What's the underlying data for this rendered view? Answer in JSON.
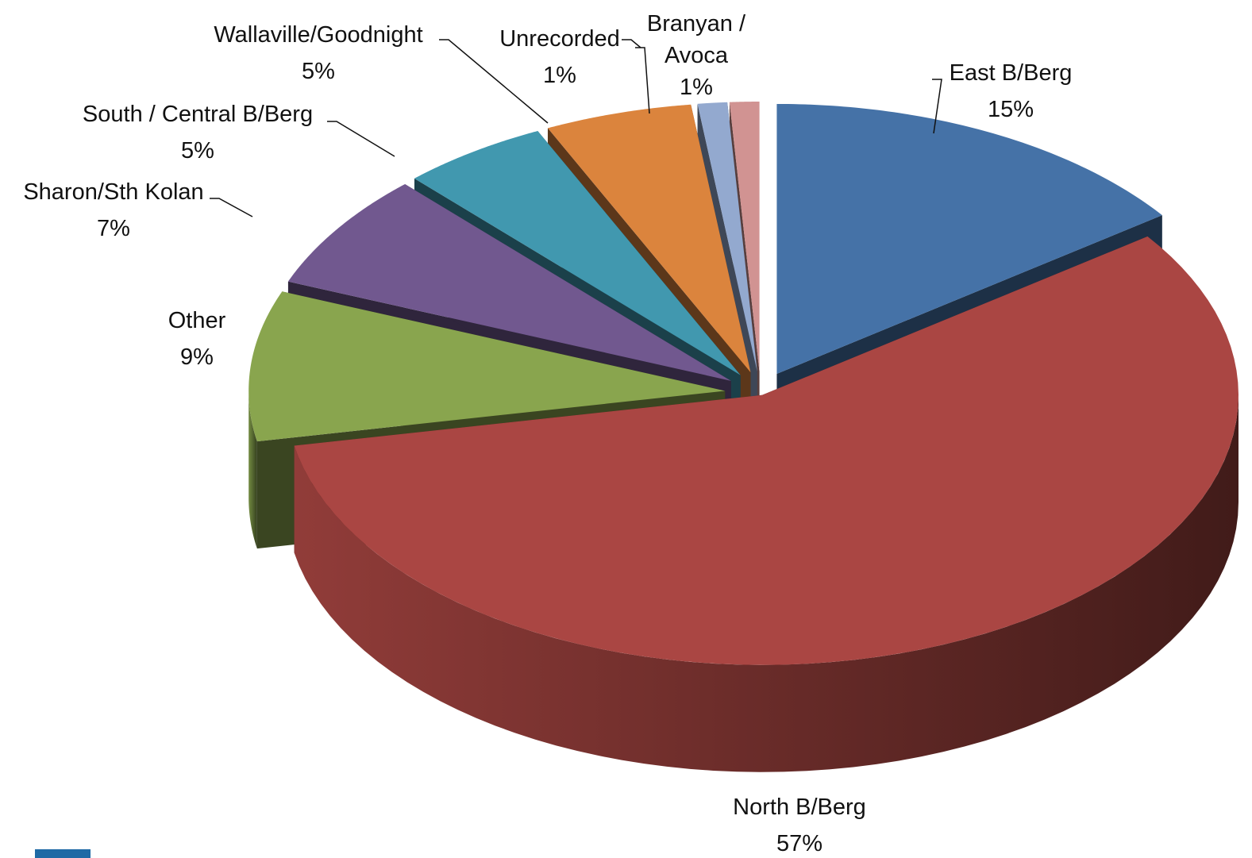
{
  "chart_data": {
    "type": "pie3d",
    "categories": [
      "East B/Berg",
      "North B/Berg",
      "Other",
      "Sharon/Sth Kolan",
      "South / Central B/Berg",
      "Wallaville/Goodnight",
      "Unrecorded",
      "Branyan / Avoca"
    ],
    "values": [
      15,
      57,
      9,
      7,
      5,
      5,
      1,
      1
    ],
    "value_labels": [
      "15%",
      "57%",
      "9%",
      "7%",
      "5%",
      "5%",
      "1%",
      "1%"
    ],
    "colors": [
      "#4572a7",
      "#aa4643",
      "#89a54e",
      "#71588f",
      "#4198af",
      "#db843d",
      "#93a9cf",
      "#d19392"
    ]
  }
}
